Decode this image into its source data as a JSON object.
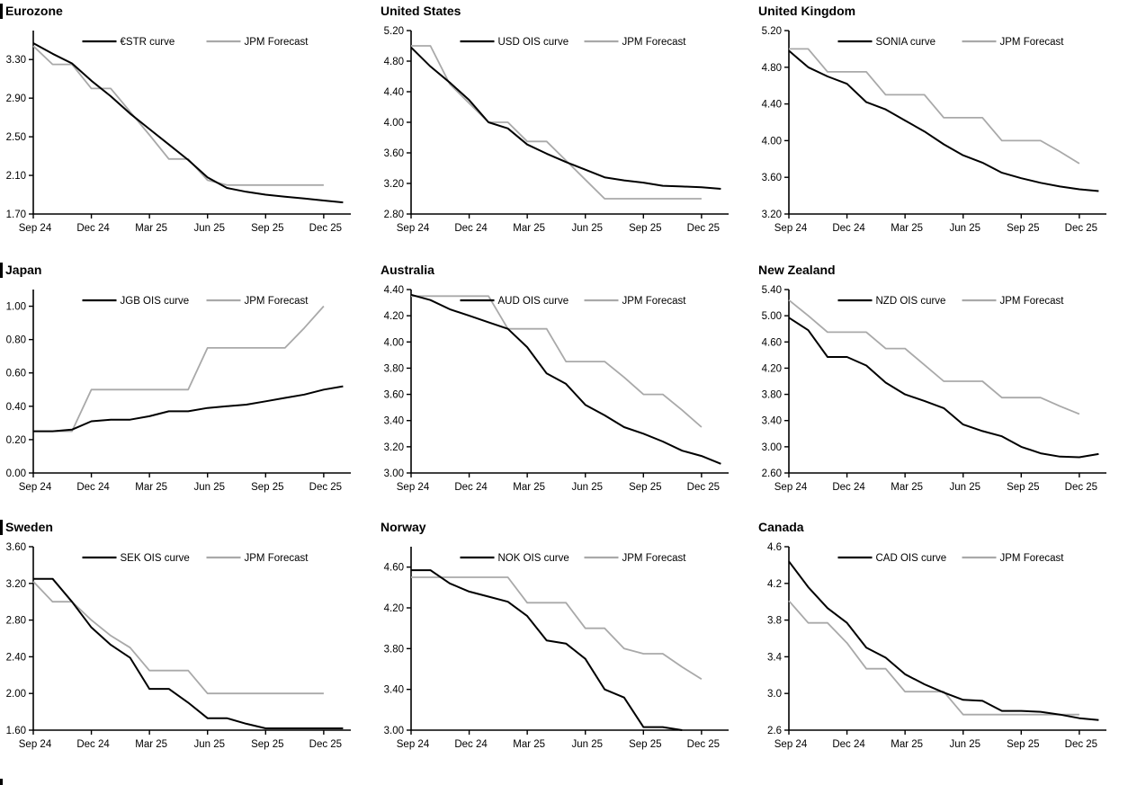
{
  "page": {
    "background": "#ffffff",
    "curve_color": "#000000",
    "forecast_color": "#a9a9a9"
  },
  "x_axis": {
    "tick_labels": [
      "Sep 24",
      "Dec 24",
      "Mar 25",
      "Jun 25",
      "Sep 25",
      "Dec 25"
    ],
    "tick_months": [
      0,
      3,
      6,
      9,
      12,
      15
    ]
  },
  "chart_data": [
    {
      "type": "line",
      "title": "Eurozone",
      "section_bar": true,
      "legend": [
        "€STR curve",
        "JPM Forecast"
      ],
      "legend_position": "top-center",
      "ylim": [
        1.7,
        3.6
      ],
      "y_ticks": [
        "1.70",
        "2.10",
        "2.50",
        "2.90",
        "3.30"
      ],
      "x_tick_labels": [
        "Sep 24",
        "Dec 24",
        "Mar 25",
        "Jun 25",
        "Sep 25",
        "Dec 25"
      ],
      "series": [
        {
          "name": "€STR curve",
          "color": "#000000",
          "start_month": 0,
          "values": [
            3.47,
            3.36,
            3.26,
            3.08,
            2.92,
            2.74,
            2.58,
            2.42,
            2.26,
            2.08,
            1.97,
            1.93,
            1.9,
            1.88,
            1.86,
            1.84,
            1.82
          ]
        },
        {
          "name": "JPM Forecast",
          "color": "#a9a9a9",
          "start_month": 0,
          "values": [
            3.44,
            3.25,
            3.25,
            3.0,
            3.0,
            2.76,
            2.52,
            2.27,
            2.27,
            2.05,
            2.0,
            2.0,
            2.0,
            2.0,
            2.0,
            2.0
          ]
        }
      ]
    },
    {
      "type": "line",
      "title": "United States",
      "section_bar": false,
      "legend": [
        "USD OIS curve",
        "JPM Forecast"
      ],
      "legend_position": "top-center",
      "ylim": [
        2.8,
        5.2
      ],
      "y_ticks": [
        "2.80",
        "3.20",
        "3.60",
        "4.00",
        "4.40",
        "4.80",
        "5.20"
      ],
      "x_tick_labels": [
        "Sep 24",
        "Dec 24",
        "Mar 25",
        "Jun 25",
        "Sep 25",
        "Dec 25"
      ],
      "series": [
        {
          "name": "USD OIS curve",
          "color": "#000000",
          "start_month": 0,
          "values": [
            4.98,
            4.73,
            4.52,
            4.29,
            4.0,
            3.92,
            3.71,
            3.59,
            3.48,
            3.38,
            3.28,
            3.24,
            3.21,
            3.17,
            3.16,
            3.15,
            3.13
          ]
        },
        {
          "name": "JPM Forecast",
          "color": "#a9a9a9",
          "start_month": 0,
          "values": [
            5.0,
            5.0,
            4.5,
            4.25,
            4.0,
            4.0,
            3.75,
            3.75,
            3.5,
            3.25,
            3.0,
            3.0,
            3.0,
            3.0,
            3.0,
            3.0
          ]
        }
      ]
    },
    {
      "type": "line",
      "title": "United Kingdom",
      "section_bar": false,
      "legend": [
        "SONIA curve",
        "JPM Forecast"
      ],
      "legend_position": "top-center",
      "ylim": [
        3.2,
        5.2
      ],
      "y_ticks": [
        "3.20",
        "3.60",
        "4.00",
        "4.40",
        "4.80",
        "5.20"
      ],
      "x_tick_labels": [
        "Sep 24",
        "Dec 24",
        "Mar 25",
        "Jun 25",
        "Sep 25",
        "Dec 25"
      ],
      "series": [
        {
          "name": "SONIA curve",
          "color": "#000000",
          "start_month": 0,
          "values": [
            4.98,
            4.8,
            4.7,
            4.62,
            4.42,
            4.34,
            4.22,
            4.1,
            3.96,
            3.84,
            3.76,
            3.65,
            3.59,
            3.54,
            3.5,
            3.47,
            3.45
          ]
        },
        {
          "name": "JPM Forecast",
          "color": "#a9a9a9",
          "start_month": 0,
          "values": [
            5.0,
            5.0,
            4.75,
            4.75,
            4.75,
            4.5,
            4.5,
            4.5,
            4.25,
            4.25,
            4.25,
            4.0,
            4.0,
            4.0,
            3.88,
            3.75
          ]
        }
      ]
    },
    {
      "type": "line",
      "title": "Japan",
      "section_bar": true,
      "legend": [
        "JGB OIS curve",
        "JPM Forecast"
      ],
      "legend_position": "top-center",
      "ylim": [
        0.0,
        1.1
      ],
      "y_ticks": [
        "0.00",
        "0.20",
        "0.40",
        "0.60",
        "0.80",
        "1.00"
      ],
      "x_tick_labels": [
        "Sep 24",
        "Dec 24",
        "Mar 25",
        "Jun 25",
        "Sep 25",
        "Dec 25"
      ],
      "series": [
        {
          "name": "JGB OIS curve",
          "color": "#000000",
          "start_month": 0,
          "values": [
            0.25,
            0.25,
            0.26,
            0.31,
            0.32,
            0.32,
            0.34,
            0.37,
            0.37,
            0.39,
            0.4,
            0.41,
            0.43,
            0.45,
            0.47,
            0.5,
            0.52
          ]
        },
        {
          "name": "JPM Forecast",
          "color": "#a9a9a9",
          "start_month": 0,
          "values": [
            0.25,
            0.25,
            0.25,
            0.5,
            0.5,
            0.5,
            0.5,
            0.5,
            0.5,
            0.75,
            0.75,
            0.75,
            0.75,
            0.75,
            0.87,
            1.0
          ]
        }
      ]
    },
    {
      "type": "line",
      "title": "Australia",
      "section_bar": false,
      "legend": [
        "AUD OIS curve",
        "JPM Forecast"
      ],
      "legend_position": "top-center",
      "ylim": [
        3.0,
        4.4
      ],
      "y_ticks": [
        "3.00",
        "3.20",
        "3.40",
        "3.60",
        "3.80",
        "4.00",
        "4.20",
        "4.40"
      ],
      "x_tick_labels": [
        "Sep 24",
        "Dec 24",
        "Mar 25",
        "Jun 25",
        "Sep 25",
        "Dec 25"
      ],
      "series": [
        {
          "name": "AUD OIS curve",
          "color": "#000000",
          "start_month": 0,
          "values": [
            4.36,
            4.32,
            4.25,
            4.2,
            4.15,
            4.1,
            3.96,
            3.76,
            3.68,
            3.52,
            3.44,
            3.35,
            3.3,
            3.24,
            3.17,
            3.13,
            3.07
          ]
        },
        {
          "name": "JPM Forecast",
          "color": "#a9a9a9",
          "start_month": 0,
          "values": [
            4.35,
            4.35,
            4.35,
            4.35,
            4.35,
            4.1,
            4.1,
            4.1,
            3.85,
            3.85,
            3.85,
            3.73,
            3.6,
            3.6,
            3.48,
            3.35
          ]
        }
      ]
    },
    {
      "type": "line",
      "title": "New Zealand",
      "section_bar": false,
      "legend": [
        "NZD OIS curve",
        "JPM Forecast"
      ],
      "legend_position": "top-center",
      "ylim": [
        2.6,
        5.4
      ],
      "y_ticks": [
        "2.60",
        "3.00",
        "3.40",
        "3.80",
        "4.20",
        "4.60",
        "5.00",
        "5.40"
      ],
      "x_tick_labels": [
        "Sep 24",
        "Dec 24",
        "Mar 25",
        "Jun 25",
        "Sep 25",
        "Dec 25"
      ],
      "series": [
        {
          "name": "NZD OIS curve",
          "color": "#000000",
          "start_month": 0,
          "values": [
            4.97,
            4.78,
            4.37,
            4.37,
            4.24,
            3.98,
            3.8,
            3.7,
            3.59,
            3.34,
            3.24,
            3.16,
            3.0,
            2.9,
            2.85,
            2.84,
            2.89
          ]
        },
        {
          "name": "JPM Forecast",
          "color": "#a9a9a9",
          "start_month": 0,
          "values": [
            5.24,
            5.0,
            4.75,
            4.75,
            4.75,
            4.5,
            4.5,
            4.25,
            4.0,
            4.0,
            4.0,
            3.75,
            3.75,
            3.75,
            3.62,
            3.5
          ]
        }
      ]
    },
    {
      "type": "line",
      "title": "Sweden",
      "section_bar": true,
      "legend": [
        "SEK OIS curve",
        "JPM Forecast"
      ],
      "legend_position": "top-center",
      "ylim": [
        1.6,
        3.6
      ],
      "y_ticks": [
        "1.60",
        "2.00",
        "2.40",
        "2.80",
        "3.20",
        "3.60"
      ],
      "x_tick_labels": [
        "Sep 24",
        "Dec 24",
        "Mar 25",
        "Jun 25",
        "Sep 25",
        "Dec 25"
      ],
      "series": [
        {
          "name": "SEK OIS curve",
          "color": "#000000",
          "start_month": 0,
          "values": [
            3.25,
            3.25,
            3.0,
            2.72,
            2.53,
            2.39,
            2.05,
            2.05,
            1.9,
            1.73,
            1.73,
            1.67,
            1.62,
            1.62,
            1.62,
            1.62,
            1.62
          ]
        },
        {
          "name": "JPM Forecast",
          "color": "#a9a9a9",
          "start_month": 0,
          "values": [
            3.22,
            3.0,
            3.0,
            2.8,
            2.63,
            2.5,
            2.25,
            2.25,
            2.25,
            2.0,
            2.0,
            2.0,
            2.0,
            2.0,
            2.0,
            2.0
          ]
        }
      ]
    },
    {
      "type": "line",
      "title": "Norway",
      "section_bar": false,
      "legend": [
        "NOK OIS curve",
        "JPM Forecast"
      ],
      "legend_position": "top-center",
      "ylim": [
        3.0,
        4.8
      ],
      "y_ticks": [
        "3.00",
        "3.40",
        "3.80",
        "4.20",
        "4.60"
      ],
      "x_tick_labels": [
        "Sep 24",
        "Dec 24",
        "Mar 25",
        "Jun 25",
        "Sep 25",
        "Dec 25"
      ],
      "series": [
        {
          "name": "NOK OIS curve",
          "color": "#000000",
          "start_month": 0,
          "values": [
            4.57,
            4.57,
            4.44,
            4.36,
            4.31,
            4.26,
            4.12,
            3.88,
            3.85,
            3.7,
            3.4,
            3.32,
            3.03,
            3.03,
            3.0
          ]
        },
        {
          "name": "JPM Forecast",
          "color": "#a9a9a9",
          "start_month": 0,
          "values": [
            4.5,
            4.5,
            4.5,
            4.5,
            4.5,
            4.5,
            4.25,
            4.25,
            4.25,
            4.0,
            4.0,
            3.8,
            3.75,
            3.75,
            3.62,
            3.5
          ]
        }
      ]
    },
    {
      "type": "line",
      "title": "Canada",
      "section_bar": false,
      "legend": [
        "CAD OIS curve",
        "JPM Forecast"
      ],
      "legend_position": "top-center",
      "ylim": [
        2.6,
        4.6
      ],
      "y_ticks": [
        "2.6",
        "3.0",
        "3.4",
        "3.8",
        "4.2",
        "4.6"
      ],
      "x_tick_labels": [
        "Sep 24",
        "Dec 24",
        "Mar 25",
        "Jun 25",
        "Sep 25",
        "Dec 25"
      ],
      "series": [
        {
          "name": "CAD OIS curve",
          "color": "#000000",
          "start_month": 0,
          "values": [
            4.44,
            4.16,
            3.93,
            3.77,
            3.5,
            3.39,
            3.21,
            3.1,
            3.01,
            2.93,
            2.92,
            2.81,
            2.81,
            2.8,
            2.77,
            2.73,
            2.71
          ]
        },
        {
          "name": "JPM Forecast",
          "color": "#a9a9a9",
          "start_month": 0,
          "values": [
            4.01,
            3.77,
            3.77,
            3.55,
            3.27,
            3.27,
            3.02,
            3.02,
            3.02,
            2.77,
            2.77,
            2.77,
            2.77,
            2.77,
            2.77,
            2.77
          ]
        }
      ]
    }
  ]
}
